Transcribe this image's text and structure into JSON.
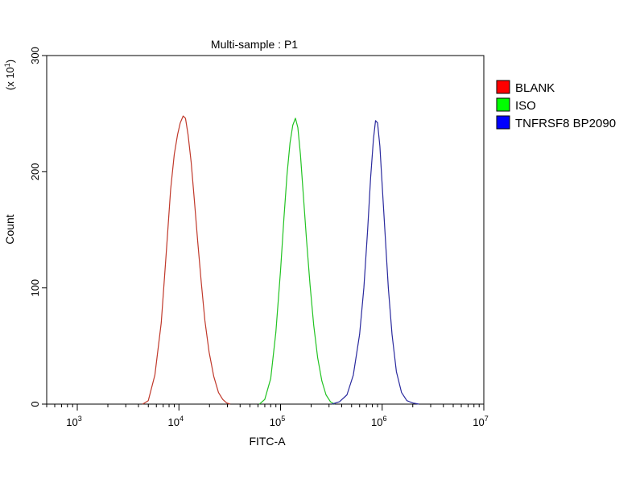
{
  "chart_data": {
    "type": "line",
    "title": "Multi-sample : P1",
    "xlabel": "FITC-A",
    "ylabel": "Count",
    "y_multiplier": "(x 10",
    "y_multiplier_exp": "1",
    "y_multiplier_close": ")",
    "x_scale": "log",
    "xlim": [
      500,
      10000000
    ],
    "ylim": [
      0,
      300
    ],
    "grid": false,
    "legend_position": "right",
    "y_ticks": [
      0,
      100,
      200,
      300
    ],
    "y_tick_labels": [
      "0",
      "100",
      "200",
      "300"
    ],
    "x_major_ticks": [
      {
        "value": 1000,
        "base": "10",
        "exp": "3"
      },
      {
        "value": 10000,
        "base": "10",
        "exp": "4"
      },
      {
        "value": 100000,
        "base": "10",
        "exp": "5"
      },
      {
        "value": 1000000,
        "base": "10",
        "exp": "6"
      },
      {
        "value": 10000000,
        "base": "10",
        "exp": "7"
      }
    ],
    "series": [
      {
        "name": "BLANK",
        "color": "#c0392b",
        "swatch": "#ff0000",
        "x": [
          4400,
          5000,
          5800,
          6700,
          7500,
          8300,
          9000,
          9700,
          10300,
          11000,
          11600,
          12300,
          13200,
          14200,
          15300,
          16600,
          18000,
          19800,
          22000,
          24500,
          27000,
          29500,
          32000
        ],
        "y": [
          0,
          3,
          25,
          70,
          130,
          185,
          215,
          232,
          242,
          248,
          246,
          232,
          208,
          175,
          140,
          105,
          72,
          45,
          24,
          10,
          4,
          1,
          0
        ]
      },
      {
        "name": "ISO",
        "color": "#22c322",
        "swatch": "#00ff00",
        "x": [
          62000,
          70000,
          80000,
          90000,
          100000,
          108000,
          116000,
          124000,
          132000,
          140000,
          148000,
          157000,
          167000,
          180000,
          195000,
          212000,
          232000,
          255000,
          280000,
          310000,
          340000
        ],
        "y": [
          0,
          4,
          22,
          62,
          115,
          160,
          198,
          225,
          240,
          246,
          238,
          215,
          182,
          142,
          103,
          68,
          40,
          20,
          8,
          2,
          0
        ]
      },
      {
        "name": "TNFRSF8 BP2090",
        "color": "#2a2a9e",
        "swatch": "#0000ff",
        "x": [
          320000,
          380000,
          450000,
          520000,
          600000,
          660000,
          720000,
          770000,
          820000,
          860000,
          900000,
          950000,
          1000000,
          1070000,
          1150000,
          1250000,
          1380000,
          1550000,
          1750000,
          2000000,
          2300000
        ],
        "y": [
          0,
          2,
          8,
          25,
          60,
          100,
          150,
          195,
          228,
          244,
          242,
          222,
          188,
          145,
          100,
          60,
          28,
          10,
          3,
          1,
          0
        ]
      }
    ]
  }
}
